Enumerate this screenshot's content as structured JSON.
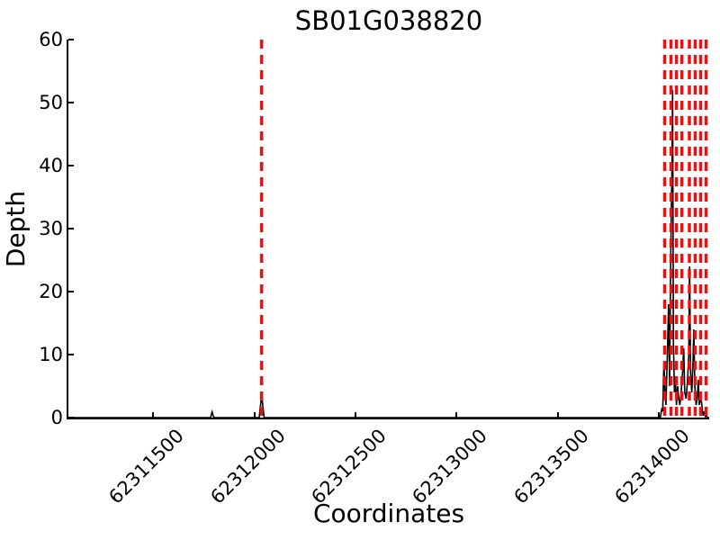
{
  "chart_data": {
    "type": "line",
    "title": "SB01G038820",
    "xlabel": "Coordinates",
    "ylabel": "Depth",
    "xlim": [
      62311080,
      62314250
    ],
    "ylim": [
      0,
      60
    ],
    "xticks": [
      62311500,
      62312000,
      62312500,
      62313000,
      62313500,
      62314000
    ],
    "yticks": [
      0,
      10,
      20,
      30,
      40,
      50,
      60
    ],
    "grid": false,
    "legend": false,
    "axes": {
      "spines": [
        "left",
        "bottom"
      ],
      "tick_direction": "in"
    },
    "colors": {
      "depth_line": "#000000",
      "marker_line": "#ee1111",
      "background": "#ffffff"
    },
    "series": [
      {
        "name": "read-depth-profile",
        "color": "#000000",
        "style": "solid",
        "points": [
          [
            62311080,
            0
          ],
          [
            62311783,
            0
          ],
          [
            62311791,
            0.9
          ],
          [
            62311799,
            0
          ],
          [
            62312024,
            0
          ],
          [
            62312036,
            3.6
          ],
          [
            62312048,
            0
          ],
          [
            62314008,
            0
          ],
          [
            62314016,
            1.5
          ],
          [
            62314020,
            1
          ],
          [
            62314026,
            9
          ],
          [
            62314031,
            4
          ],
          [
            62314036,
            2
          ],
          [
            62314043,
            10
          ],
          [
            62314049,
            18
          ],
          [
            62314054,
            5
          ],
          [
            62314060,
            26
          ],
          [
            62314066,
            40
          ],
          [
            62314069,
            52
          ],
          [
            62314073,
            12
          ],
          [
            62314078,
            4
          ],
          [
            62314083,
            6
          ],
          [
            62314088,
            2
          ],
          [
            62314094,
            5
          ],
          [
            62314099,
            3
          ],
          [
            62314105,
            2
          ],
          [
            62314111,
            4
          ],
          [
            62314118,
            7
          ],
          [
            62314124,
            11
          ],
          [
            62314129,
            4
          ],
          [
            62314136,
            3
          ],
          [
            62314143,
            6
          ],
          [
            62314149,
            10
          ],
          [
            62314153,
            24
          ],
          [
            62314158,
            7
          ],
          [
            62314164,
            4
          ],
          [
            62314170,
            9
          ],
          [
            62314174,
            14
          ],
          [
            62314179,
            5
          ],
          [
            62314185,
            2
          ],
          [
            62314191,
            3
          ],
          [
            62314196,
            6
          ],
          [
            62314201,
            2
          ],
          [
            62314207,
            3
          ],
          [
            62314212,
            2.5
          ],
          [
            62314217,
            1
          ],
          [
            62314221,
            0.3
          ],
          [
            62314226,
            1
          ],
          [
            62314231,
            0.2
          ],
          [
            62314236,
            0.5
          ],
          [
            62314240,
            0
          ],
          [
            62314250,
            0
          ]
        ]
      }
    ],
    "marker_lines": {
      "name": "boundary-markers",
      "color": "#ee1111",
      "style": "dashed",
      "x_positions": [
        62312036,
        62314030,
        62314061,
        62314088,
        62314115,
        62314152,
        62314181,
        62314208,
        62314235
      ]
    }
  }
}
